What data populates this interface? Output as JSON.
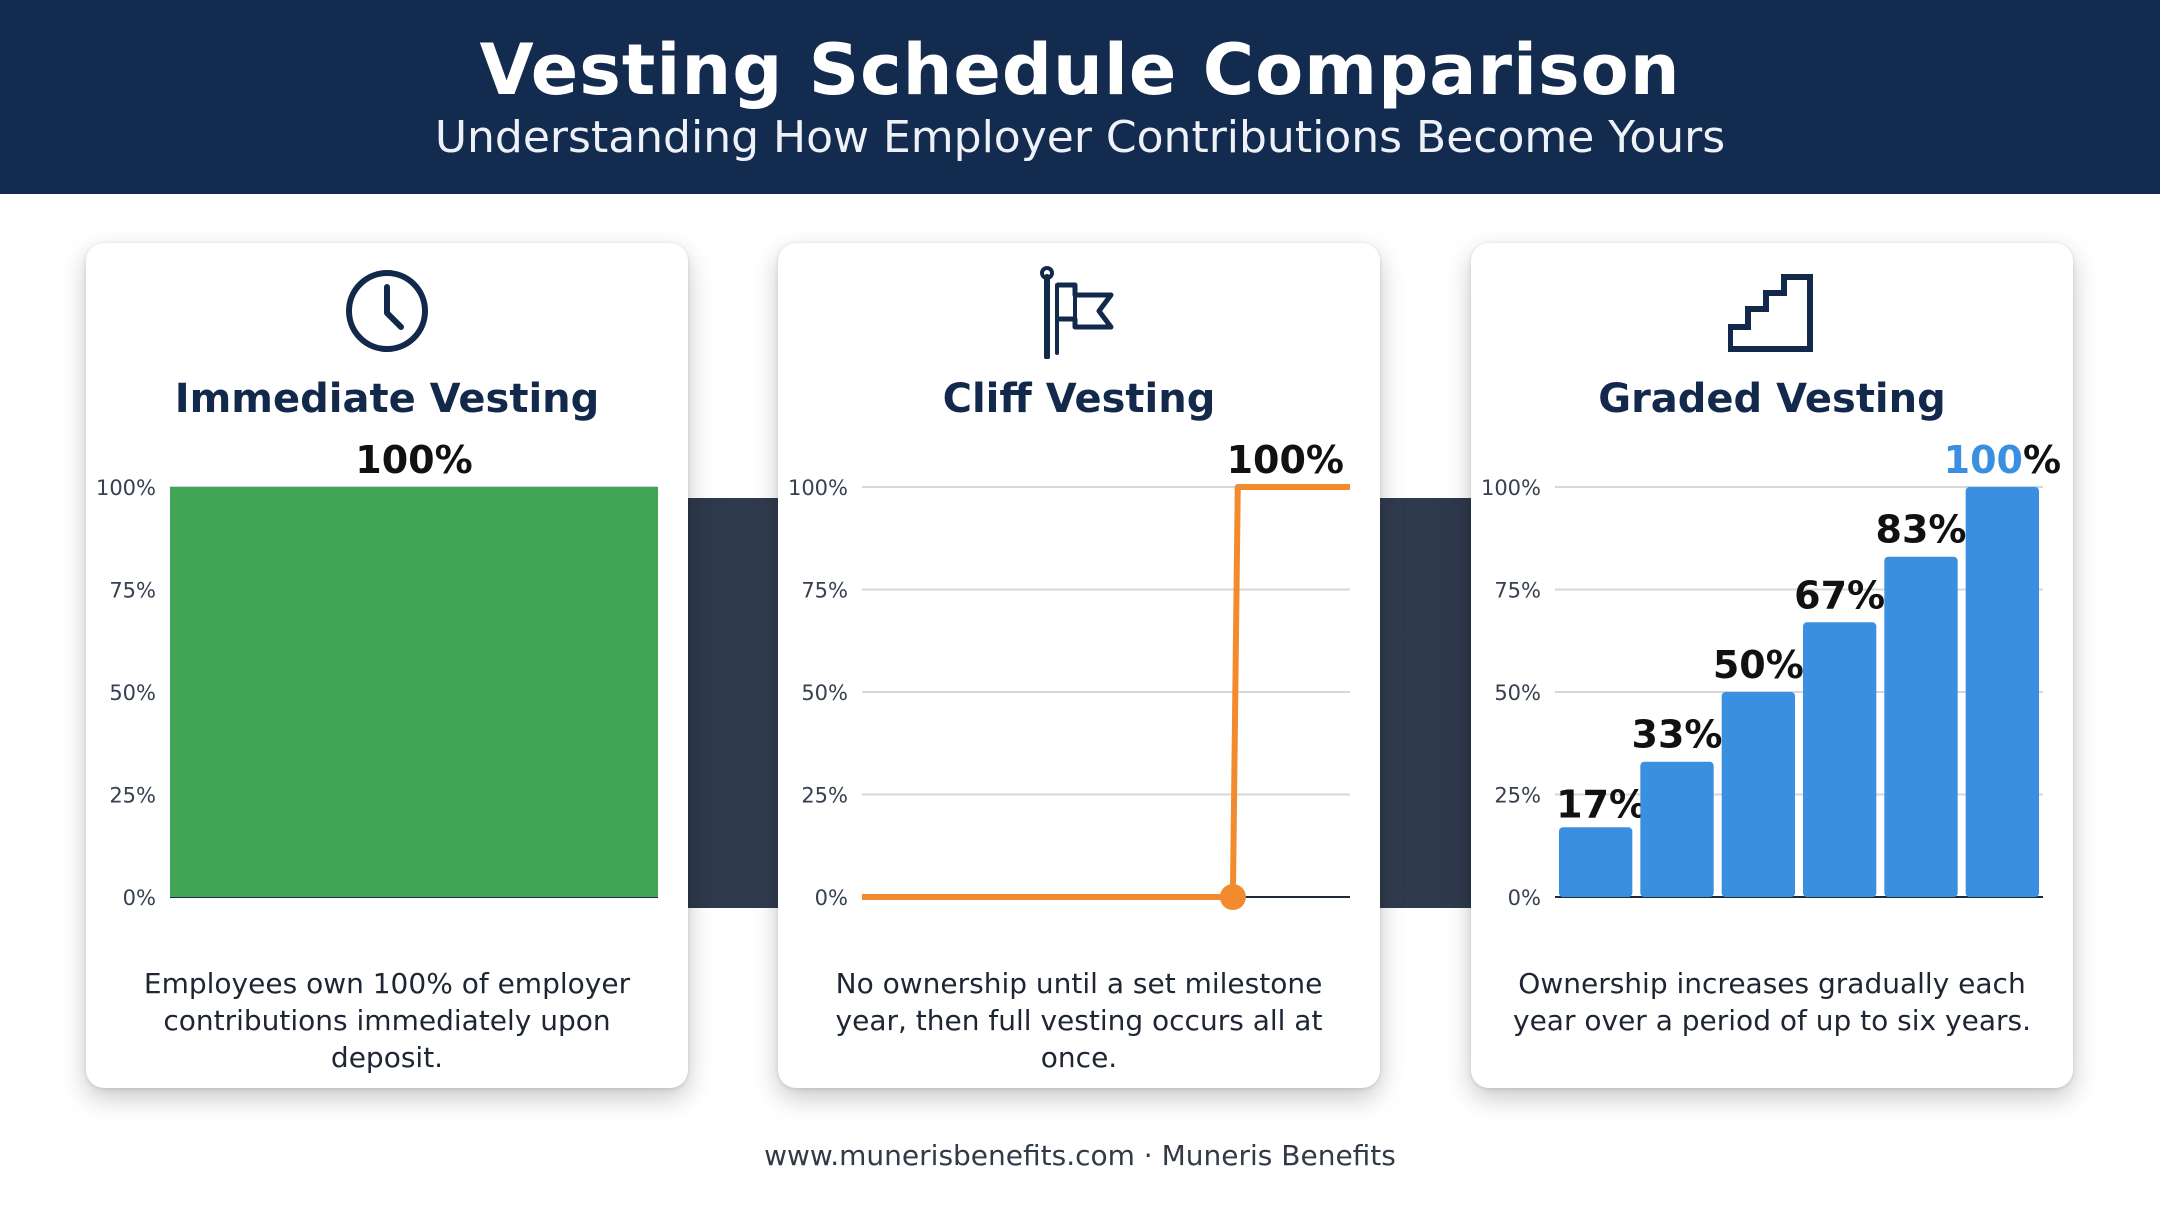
{
  "header": {
    "title": "Vesting Schedule Comparison",
    "subtitle": "Understanding How Employer Contributions Become Yours"
  },
  "cards": [
    {
      "icon": "clock-icon",
      "title": "Immediate Vesting",
      "description": "Employees own 100% of employer contributions immediately upon deposit."
    },
    {
      "icon": "flag-icon",
      "title": "Cliff Vesting",
      "description": "No ownership until a set milestone year, then full vesting occurs all at once."
    },
    {
      "icon": "stairs-icon",
      "title": "Graded Vesting",
      "description": "Ownership increases gradually each year over a period of up to six years."
    }
  ],
  "chart_data": [
    {
      "type": "bar",
      "title": "Immediate Vesting",
      "y_ticks": [
        "0%",
        "25%",
        "50%",
        "75%",
        "100%"
      ],
      "ylim": [
        0,
        100
      ],
      "grid": true,
      "values": [
        100
      ],
      "data_labels": [
        "100%"
      ],
      "color": "#41a456"
    },
    {
      "type": "line",
      "title": "Cliff Vesting",
      "y_ticks": [
        "0%",
        "25%",
        "50%",
        "75%",
        "100%"
      ],
      "ylim": [
        0,
        100
      ],
      "grid": true,
      "xlim": [
        0,
        100
      ],
      "points": [
        [
          0,
          0
        ],
        [
          76,
          0
        ],
        [
          77,
          100
        ],
        [
          100,
          100
        ]
      ],
      "marker": [
        76,
        0
      ],
      "data_labels": [
        "100%"
      ],
      "color": "#f28a2e"
    },
    {
      "type": "bar",
      "title": "Graded Vesting",
      "y_ticks": [
        "0%",
        "25%",
        "50%",
        "75%",
        "100%"
      ],
      "ylim": [
        0,
        100
      ],
      "grid": true,
      "values": [
        17,
        33,
        50,
        67,
        83,
        100
      ],
      "data_labels": [
        "17%",
        "33%",
        "50%",
        "67%",
        "83%",
        "100%"
      ],
      "highlight_color": "#3b8fe0",
      "color": "#3b8fe0"
    }
  ],
  "footer": "www.munerisbenefits.com · Muneris Benefits"
}
